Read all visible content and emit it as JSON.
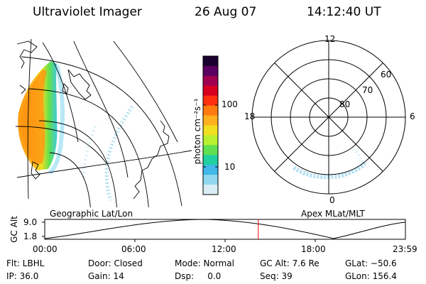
{
  "header": {
    "title": "Ultraviolet Imager",
    "date": "26 Aug 07",
    "time": "14:12:40 UT"
  },
  "colorbar": {
    "unit_label": "photon cm⁻²s⁻¹",
    "ticks": [
      "100",
      "10"
    ],
    "colors": [
      "#1a0030",
      "#5a0060",
      "#a00050",
      "#d80020",
      "#ff3010",
      "#ff7a10",
      "#ffb020",
      "#f0e020",
      "#b8f030",
      "#60e050",
      "#20d0a0",
      "#40b8e8",
      "#90d8f0",
      "#d8eef4"
    ]
  },
  "map_left": {
    "caption": "Geographic Lat/Lon"
  },
  "map_right": {
    "caption": "Apex MLat/MLT",
    "mlt_labels": {
      "top": "12",
      "bottom": "0",
      "left": "18",
      "right": "6"
    },
    "lat_labels": [
      "80",
      "70",
      "60"
    ]
  },
  "timeline": {
    "ylabel": "GC Alt",
    "y_ticks": [
      "9.0",
      "1.8"
    ],
    "x_ticks": [
      "00:00",
      "06:00",
      "12:00",
      "18:00",
      "23:59"
    ],
    "current_time_fraction": 0.5921,
    "marker_color": "#ff0000"
  },
  "status": {
    "flt": "Flt: LBHL",
    "ip": "IP: 36.0",
    "door": "Door: Closed",
    "gain": "Gain: 14",
    "mode": "Mode: Normal",
    "dsp": "Dsp:     0.0",
    "gc_alt": "GC Alt: 7.6 Re",
    "seq": "Seq: 39",
    "glat": "GLat: −50.6",
    "glon": "GLon: 156.4"
  }
}
